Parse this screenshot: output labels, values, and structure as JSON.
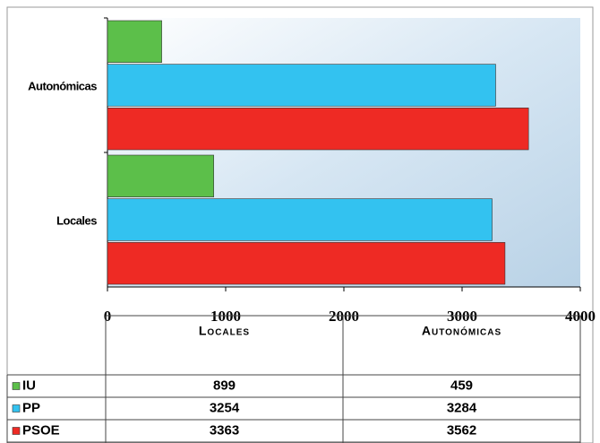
{
  "chart_data": {
    "type": "bar",
    "orientation": "horizontal",
    "categories": [
      "Locales",
      "Autonómicas"
    ],
    "series": [
      {
        "name": "IU",
        "color": "#5cbf4a",
        "values": [
          899,
          459
        ]
      },
      {
        "name": "PP",
        "color": "#33c2f0",
        "values": [
          3254,
          3284
        ]
      },
      {
        "name": "PSOE",
        "color": "#ee2a24",
        "values": [
          3363,
          3562
        ]
      }
    ],
    "xlim": [
      0,
      4000
    ],
    "xticks": [
      0,
      1000,
      2000,
      3000,
      4000
    ]
  }
}
